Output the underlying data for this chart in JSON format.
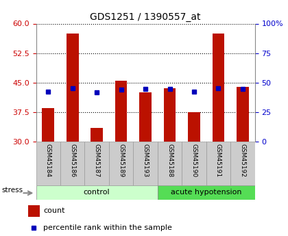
{
  "title": "GDS1251 / 1390557_at",
  "samples": [
    "GSM45184",
    "GSM45186",
    "GSM45187",
    "GSM45189",
    "GSM45193",
    "GSM45188",
    "GSM45190",
    "GSM45191",
    "GSM45192"
  ],
  "counts": [
    38.5,
    57.5,
    33.5,
    45.5,
    42.5,
    43.5,
    37.5,
    57.5,
    44.0
  ],
  "percentile_ranks": [
    42.5,
    45.5,
    42.0,
    44.0,
    44.5,
    44.5,
    42.5,
    45.5,
    44.5
  ],
  "bar_bottom": 30,
  "ylim_left": [
    30,
    60
  ],
  "ylim_right": [
    0,
    100
  ],
  "yticks_left": [
    30,
    37.5,
    45,
    52.5,
    60
  ],
  "yticks_right": [
    0,
    25,
    50,
    75,
    100
  ],
  "n_control": 5,
  "n_acute": 4,
  "bar_color": "#BB1100",
  "dot_color": "#0000BB",
  "control_color": "#CCFFCC",
  "acute_color": "#55DD55",
  "ylabel_left_color": "#CC0000",
  "ylabel_right_color": "#0000CC",
  "label_bg_color": "#CCCCCC",
  "label_border_color": "#999999"
}
